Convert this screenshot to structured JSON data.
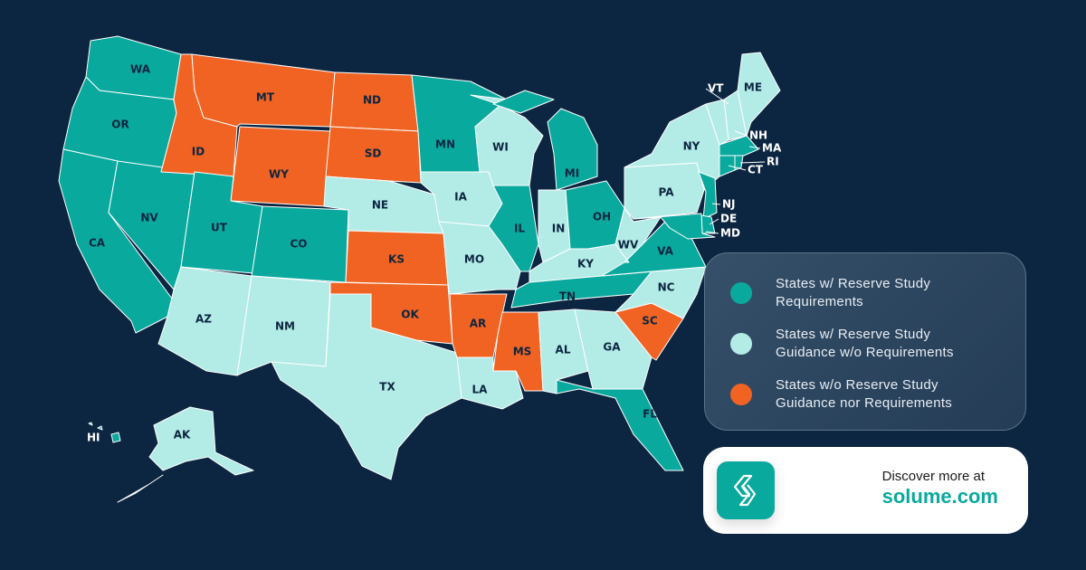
{
  "colors": {
    "background": "#0c2540",
    "requirements": "#0aa99e",
    "guidance": "#b3ebe7",
    "none": "#f06323"
  },
  "legend": [
    {
      "key": "requirements",
      "label": "States w/ Reserve Study Requirements"
    },
    {
      "key": "guidance",
      "label": "States w/ Reserve Study Guidance w/o Requirements"
    },
    {
      "key": "none",
      "label": "States w/o Reserve Study Guidance nor Requirements"
    }
  ],
  "states": {
    "WA": "requirements",
    "OR": "requirements",
    "CA": "requirements",
    "NV": "requirements",
    "UT": "requirements",
    "CO": "requirements",
    "ID": "none",
    "MT": "none",
    "WY": "none",
    "ND": "none",
    "SD": "none",
    "KS": "none",
    "OK": "none",
    "AR": "none",
    "MS": "none",
    "SC": "none",
    "AZ": "guidance",
    "NM": "guidance",
    "TX": "guidance",
    "NE": "guidance",
    "IA": "guidance",
    "MO": "guidance",
    "WI": "guidance",
    "IN": "guidance",
    "KY": "guidance",
    "WV": "guidance",
    "NC": "guidance",
    "GA": "guidance",
    "AL": "guidance",
    "LA": "guidance",
    "PA": "guidance",
    "NY": "guidance",
    "VT": "guidance",
    "NH": "guidance",
    "ME": "guidance",
    "AK": "guidance",
    "MN": "requirements",
    "IL": "requirements",
    "MI": "requirements",
    "OH": "requirements",
    "TN": "requirements",
    "VA": "requirements",
    "FL": "requirements",
    "NJ": "requirements",
    "DE": "requirements",
    "MD": "requirements",
    "MA": "requirements",
    "CT": "requirements",
    "RI": "requirements",
    "HI": "requirements"
  },
  "cta": {
    "text": "Discover more at",
    "link": "solume.com",
    "logo_icon": "solume-logo-icon"
  }
}
